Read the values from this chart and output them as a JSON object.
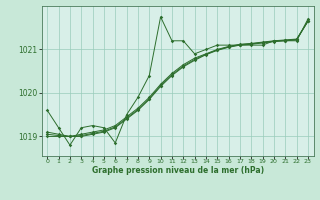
{
  "xlabel": "Graphe pression niveau de la mer (hPa)",
  "background_color": "#c8e8d8",
  "plot_bg_color": "#d8efe8",
  "grid_color": "#99ccbb",
  "line_color": "#2d6e2d",
  "xlim": [
    -0.5,
    23.5
  ],
  "ylim": [
    1018.55,
    1022.0
  ],
  "yticks": [
    1019,
    1020,
    1021
  ],
  "xticks": [
    0,
    1,
    2,
    3,
    4,
    5,
    6,
    7,
    8,
    9,
    10,
    11,
    12,
    13,
    14,
    15,
    16,
    17,
    18,
    19,
    20,
    21,
    22,
    23
  ],
  "series1": {
    "x": [
      0,
      1,
      2,
      3,
      4,
      5,
      6,
      7,
      8,
      9,
      10,
      11,
      12,
      13,
      14,
      15,
      16,
      17,
      18,
      19,
      20,
      21,
      22,
      23
    ],
    "y": [
      1019.6,
      1019.2,
      1018.8,
      1019.2,
      1019.25,
      1019.2,
      1018.85,
      1019.5,
      1019.9,
      1020.4,
      1021.75,
      1021.2,
      1021.2,
      1020.9,
      1021.0,
      1021.1,
      1021.1,
      1021.1,
      1021.1,
      1021.1,
      1021.2,
      1021.2,
      1021.2,
      1021.7
    ]
  },
  "series2": {
    "x": [
      0,
      1,
      2,
      3,
      4,
      5,
      6,
      7,
      8,
      9,
      10,
      11,
      12,
      13,
      14,
      15,
      16,
      17,
      18,
      19,
      20,
      21,
      22,
      23
    ],
    "y": [
      1019.1,
      1019.05,
      1019.0,
      1019.0,
      1019.05,
      1019.1,
      1019.2,
      1019.4,
      1019.6,
      1019.85,
      1020.15,
      1020.4,
      1020.6,
      1020.75,
      1020.88,
      1020.98,
      1021.05,
      1021.1,
      1021.12,
      1021.15,
      1021.18,
      1021.2,
      1021.22,
      1021.65
    ]
  },
  "series3": {
    "x": [
      0,
      1,
      2,
      3,
      4,
      5,
      6,
      7,
      8,
      9,
      10,
      11,
      12,
      13,
      14,
      15,
      16,
      17,
      18,
      19,
      20,
      21,
      22,
      23
    ],
    "y": [
      1019.0,
      1019.0,
      1019.0,
      1019.05,
      1019.1,
      1019.15,
      1019.25,
      1019.45,
      1019.65,
      1019.9,
      1020.2,
      1020.45,
      1020.65,
      1020.8,
      1020.9,
      1021.0,
      1021.07,
      1021.12,
      1021.14,
      1021.17,
      1021.2,
      1021.22,
      1021.24,
      1021.65
    ]
  },
  "series4": {
    "x": [
      0,
      1,
      2,
      3,
      4,
      5,
      6,
      7,
      8,
      9,
      10,
      11,
      12,
      13,
      14,
      15,
      16,
      17,
      18,
      19,
      20,
      21,
      22,
      23
    ],
    "y": [
      1019.05,
      1019.02,
      1019.0,
      1019.02,
      1019.07,
      1019.12,
      1019.22,
      1019.42,
      1019.62,
      1019.87,
      1020.17,
      1020.42,
      1020.62,
      1020.77,
      1020.89,
      1020.99,
      1021.06,
      1021.11,
      1021.13,
      1021.16,
      1021.19,
      1021.21,
      1021.23,
      1021.65
    ]
  }
}
